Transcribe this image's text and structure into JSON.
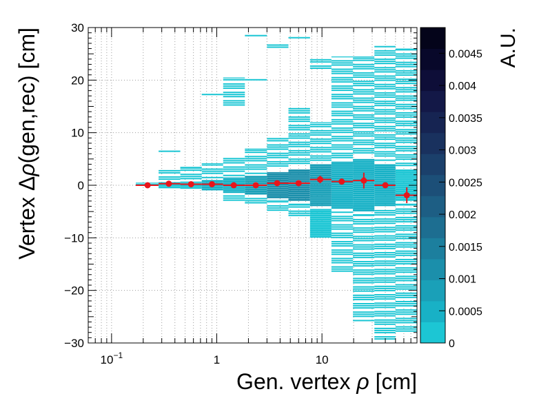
{
  "chart_data": {
    "type": "heatmap",
    "title": "",
    "xlabel_prefix": "Gen. vertex ",
    "xlabel_symbol": "ρ",
    "xlabel_suffix": " [cm]",
    "ylabel_prefix": "Vertex Δ",
    "ylabel_symbol": "ρ",
    "ylabel_suffix": "(gen,rec) [cm]",
    "zlabel": "A.U.",
    "x_scale": "log",
    "xlim": [
      0.06,
      80
    ],
    "ylim": [
      -30,
      30
    ],
    "zlim": [
      0,
      0.0049
    ],
    "grid": true,
    "x_tick_labels": [
      {
        "value": 0.1,
        "base": "10",
        "exp": "−1"
      },
      {
        "value": 1,
        "base": "1",
        "exp": ""
      },
      {
        "value": 10,
        "base": "10",
        "exp": ""
      }
    ],
    "y_ticks": [
      -30,
      -20,
      -10,
      0,
      10,
      20,
      30
    ],
    "y_tick_labels": [
      "−30",
      "−20",
      "−10",
      "0",
      "10",
      "20",
      "30"
    ],
    "z_ticks": [
      0,
      0.0005,
      0.001,
      0.0015,
      0.002,
      0.0025,
      0.003,
      0.0035,
      0.004,
      0.0045
    ],
    "z_tick_labels": [
      "0",
      "0.0005",
      "0.001",
      "0.0015",
      "0.002",
      "0.0025",
      "0.003",
      "0.0035",
      "0.004",
      "0.0045"
    ],
    "palette": [
      "#1cc6d4",
      "#18b1c6",
      "#1aa0b8",
      "#1b8fab",
      "#1c7f9e",
      "#1d6e91",
      "#1d5e84",
      "#1c4f78",
      "#1b406b",
      "#19315e",
      "#162452",
      "#131847",
      "#0e0e38",
      "#08082a",
      "#04041a"
    ],
    "profile_color": "#e8151b",
    "heatmap_columns": [
      {
        "x": [
          0.17,
          0.28
        ],
        "y": [
          -0.5,
          0.5
        ],
        "level": 0.00015
      },
      {
        "x": [
          0.28,
          0.45
        ],
        "y": [
          -0.6,
          0.6
        ],
        "level": 0.0002
      },
      {
        "x": [
          0.28,
          0.45
        ],
        "y": [
          0.9,
          2.9
        ],
        "level": 5e-05
      },
      {
        "x": [
          0.28,
          0.45
        ],
        "y": [
          6.2,
          6.6
        ],
        "level": 4e-05
      },
      {
        "x": [
          0.45,
          0.72
        ],
        "y": [
          -0.7,
          0.7
        ],
        "level": 0.0003
      },
      {
        "x": [
          0.45,
          0.72
        ],
        "y": [
          1.0,
          3.5
        ],
        "level": 6e-05
      },
      {
        "x": [
          0.72,
          1.15
        ],
        "y": [
          -1.0,
          1.0
        ],
        "level": 0.0004
      },
      {
        "x": [
          0.72,
          1.15
        ],
        "y": [
          1.2,
          4.2
        ],
        "level": 8e-05
      },
      {
        "x": [
          0.72,
          1.15
        ],
        "y": [
          26.4,
          26.8
        ],
        "level": 4e-05
      },
      {
        "x": [
          0.72,
          1.15
        ],
        "y": [
          17.0,
          17.4
        ],
        "level": 4e-05
      },
      {
        "x": [
          1.15,
          1.85
        ],
        "y": [
          -1.5,
          1.5
        ],
        "level": 0.0006
      },
      {
        "x": [
          1.15,
          1.85
        ],
        "y": [
          1.6,
          5.5
        ],
        "level": 0.0001
      },
      {
        "x": [
          1.15,
          1.85
        ],
        "y": [
          -3.5,
          -1.6
        ],
        "level": 8e-05
      },
      {
        "x": [
          1.15,
          1.85
        ],
        "y": [
          15.0,
          20.5
        ],
        "level": 5e-05
      },
      {
        "x": [
          1.85,
          3.0
        ],
        "y": [
          -1.8,
          1.8
        ],
        "level": 0.0008
      },
      {
        "x": [
          1.85,
          3.0
        ],
        "y": [
          2.0,
          7.0
        ],
        "level": 0.0001
      },
      {
        "x": [
          1.85,
          3.0
        ],
        "y": [
          -4.0,
          -2.0
        ],
        "level": 0.0001
      },
      {
        "x": [
          1.85,
          3.0
        ],
        "y": [
          28.2,
          28.6
        ],
        "level": 4e-05
      },
      {
        "x": [
          1.85,
          3.0
        ],
        "y": [
          19.8,
          20.2
        ],
        "level": 4e-05
      },
      {
        "x": [
          3.0,
          4.8
        ],
        "y": [
          -2.5,
          2.5
        ],
        "level": 0.001
      },
      {
        "x": [
          3.0,
          4.8
        ],
        "y": [
          3.0,
          9.0
        ],
        "level": 0.0001
      },
      {
        "x": [
          3.0,
          4.8
        ],
        "y": [
          -5.0,
          -2.8
        ],
        "level": 0.0001
      },
      {
        "x": [
          3.0,
          4.8
        ],
        "y": [
          26.0,
          27.0
        ],
        "level": 4e-05
      },
      {
        "x": [
          4.8,
          7.7
        ],
        "y": [
          -3.0,
          3.0
        ],
        "level": 0.001
      },
      {
        "x": [
          4.8,
          7.7
        ],
        "y": [
          3.5,
          15.0
        ],
        "level": 0.0001
      },
      {
        "x": [
          4.8,
          7.7
        ],
        "y": [
          -6.0,
          -3.5
        ],
        "level": 0.0001
      },
      {
        "x": [
          4.8,
          7.7
        ],
        "y": [
          27.8,
          28.2
        ],
        "level": 4e-05
      },
      {
        "x": [
          7.7,
          12.3
        ],
        "y": [
          -4.0,
          4.0
        ],
        "level": 0.0009
      },
      {
        "x": [
          7.7,
          12.3
        ],
        "y": [
          -10.0,
          -4.5
        ],
        "level": 0.0002
      },
      {
        "x": [
          7.7,
          12.3
        ],
        "y": [
          4.5,
          12.0
        ],
        "level": 0.0001
      },
      {
        "x": [
          7.7,
          12.3
        ],
        "y": [
          22.0,
          24.0
        ],
        "level": 4e-05
      },
      {
        "x": [
          12.3,
          19.7
        ],
        "y": [
          -4.5,
          4.5
        ],
        "level": 0.0006
      },
      {
        "x": [
          12.3,
          19.7
        ],
        "y": [
          -17.0,
          -5.0
        ],
        "level": 0.00015
      },
      {
        "x": [
          12.3,
          19.7
        ],
        "y": [
          5.0,
          24.5
        ],
        "level": 8e-05
      },
      {
        "x": [
          19.7,
          31.5
        ],
        "y": [
          -5.0,
          5.0
        ],
        "level": 0.0005
      },
      {
        "x": [
          19.7,
          31.5
        ],
        "y": [
          -26.0,
          -5.5
        ],
        "level": 0.00012
      },
      {
        "x": [
          19.7,
          31.5
        ],
        "y": [
          5.5,
          24.5
        ],
        "level": 8e-05
      },
      {
        "x": [
          31.5,
          50.0
        ],
        "y": [
          -4.0,
          4.0
        ],
        "level": 0.0004
      },
      {
        "x": [
          31.5,
          50.0
        ],
        "y": [
          -29.5,
          -4.5
        ],
        "level": 0.0001
      },
      {
        "x": [
          31.5,
          50.0
        ],
        "y": [
          4.5,
          26.5
        ],
        "level": 6e-05
      },
      {
        "x": [
          50.0,
          80.0
        ],
        "y": [
          -3.0,
          3.0
        ],
        "level": 0.0003
      },
      {
        "x": [
          50.0,
          80.0
        ],
        "y": [
          -28.0,
          -3.5
        ],
        "level": 8e-05
      },
      {
        "x": [
          50.0,
          80.0
        ],
        "y": [
          3.5,
          26.0
        ],
        "level": 5e-05
      }
    ],
    "profile_series": {
      "name": "",
      "points": [
        {
          "x": 0.22,
          "y": 0.0,
          "xlo": 0.17,
          "xhi": 0.28,
          "yerr": 0.1
        },
        {
          "x": 0.35,
          "y": 0.3,
          "xlo": 0.28,
          "xhi": 0.45,
          "yerr": 0.1
        },
        {
          "x": 0.57,
          "y": 0.2,
          "xlo": 0.45,
          "xhi": 0.72,
          "yerr": 0.1
        },
        {
          "x": 0.9,
          "y": 0.2,
          "xlo": 0.72,
          "xhi": 1.15,
          "yerr": 0.1
        },
        {
          "x": 1.45,
          "y": 0.0,
          "xlo": 1.15,
          "xhi": 1.85,
          "yerr": 0.1
        },
        {
          "x": 2.35,
          "y": 0.0,
          "xlo": 1.85,
          "xhi": 3.0,
          "yerr": 0.1
        },
        {
          "x": 3.75,
          "y": 0.4,
          "xlo": 3.0,
          "xhi": 4.8,
          "yerr": 0.2
        },
        {
          "x": 6.0,
          "y": 0.4,
          "xlo": 4.8,
          "xhi": 7.7,
          "yerr": 0.3
        },
        {
          "x": 9.6,
          "y": 1.1,
          "xlo": 7.7,
          "xhi": 12.3,
          "yerr": 0.7
        },
        {
          "x": 15.4,
          "y": 0.7,
          "xlo": 12.3,
          "xhi": 19.7,
          "yerr": 0.4
        },
        {
          "x": 25.0,
          "y": 0.9,
          "xlo": 19.7,
          "xhi": 31.5,
          "yerr": 1.5
        },
        {
          "x": 40.0,
          "y": 0.0,
          "xlo": 31.5,
          "xhi": 50.0,
          "yerr": 0.4
        },
        {
          "x": 64.0,
          "y": -1.9,
          "xlo": 50.0,
          "xhi": 80.0,
          "yerr": 1.5
        }
      ]
    }
  }
}
